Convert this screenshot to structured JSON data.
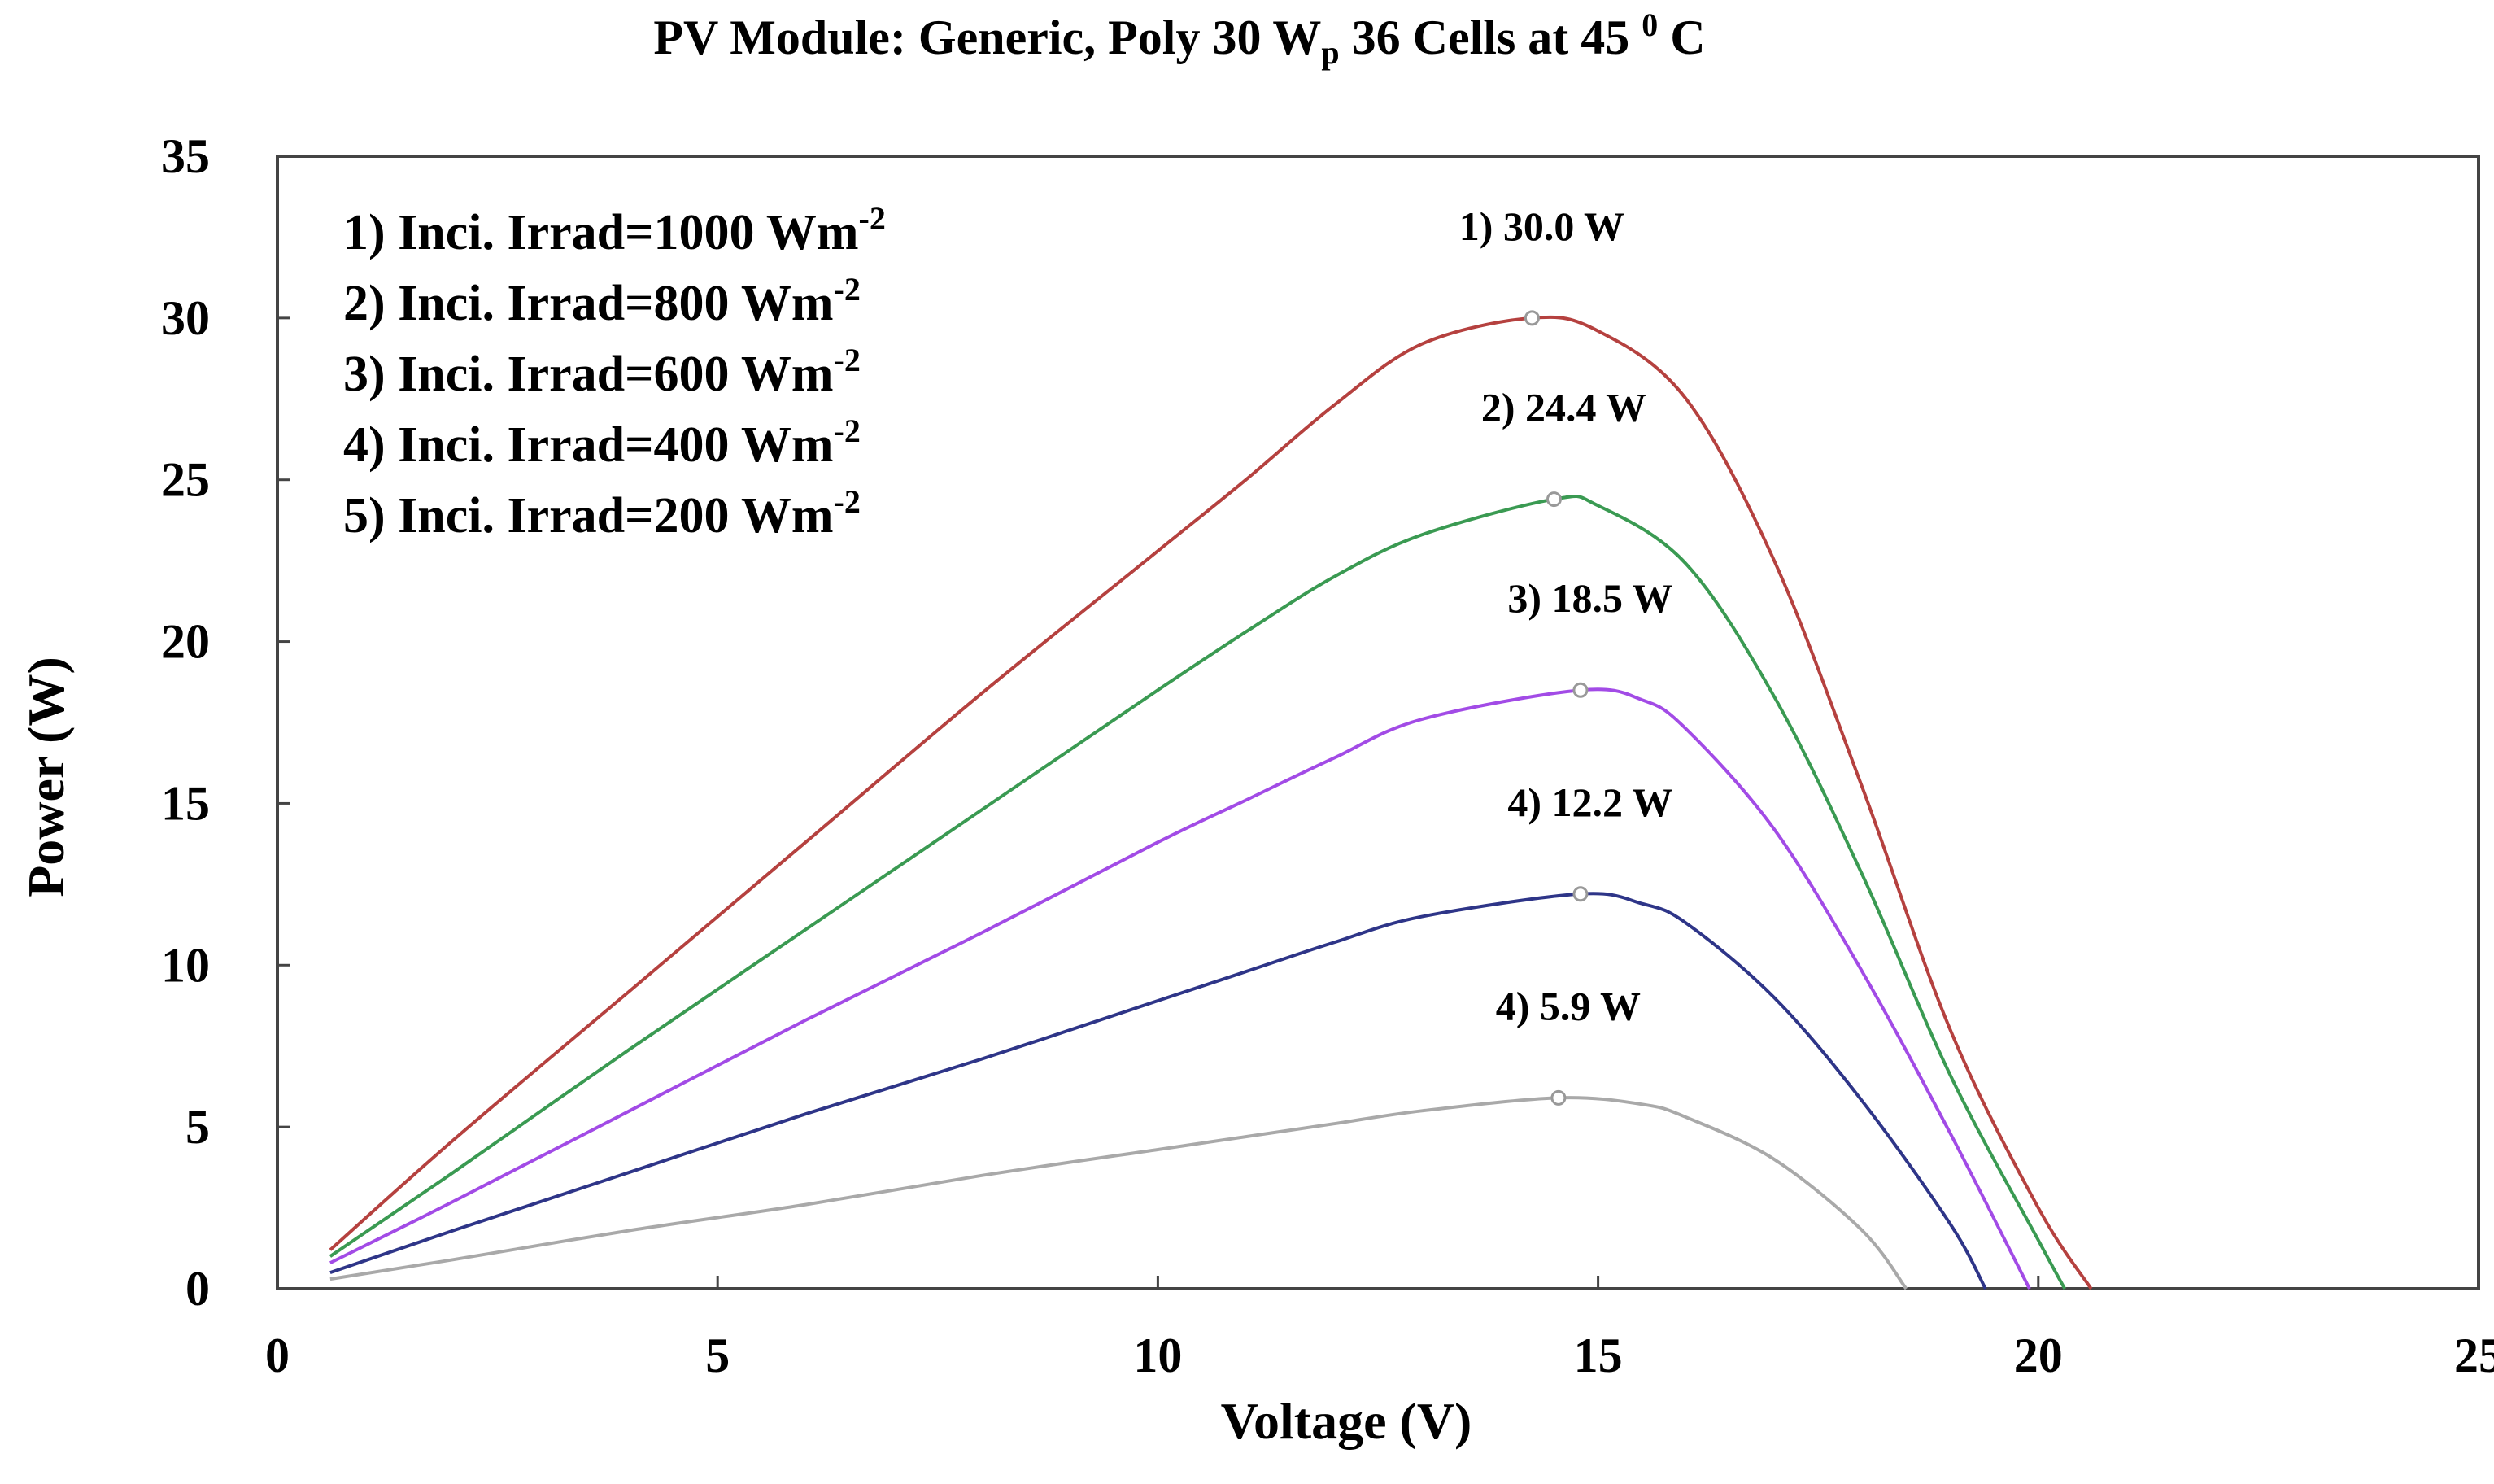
{
  "chart_data": {
    "type": "line",
    "title": {
      "main": "PV Module: Generic, Poly 30 W",
      "sub": "p",
      "rest": " 36 Cells at 45 ",
      "sup": "0",
      "tail": " C"
    },
    "xlabel": "Voltage (V)",
    "ylabel": "Power (W)",
    "xlim": [
      0,
      25
    ],
    "ylim": [
      0,
      35
    ],
    "x_ticks": [
      0,
      5,
      10,
      15,
      20,
      25
    ],
    "y_ticks": [
      0,
      5,
      10,
      15,
      20,
      25,
      30,
      35
    ],
    "legend": {
      "position": "top-left",
      "entries": [
        {
          "label": "1) Inci. Irrad=1000 Wm",
          "sup": "-2"
        },
        {
          "label": "2) Inci. Irrad=800 Wm",
          "sup": "-2"
        },
        {
          "label": "3) Inci. Irrad=600 Wm",
          "sup": "-2"
        },
        {
          "label": "4) Inci. Irrad=400 Wm",
          "sup": "-2"
        },
        {
          "label": "5) Inci. Irrad=200 Wm",
          "sup": "-2"
        }
      ]
    },
    "series": [
      {
        "name": "1000 Wm-2",
        "color": "#b5413f",
        "x": [
          0.6,
          2,
          4,
          6,
          8,
          10,
          11,
          12,
          13,
          14.25,
          15,
          16,
          17,
          18,
          19,
          20,
          20.6
        ],
        "y": [
          1.2,
          4.6,
          9.2,
          13.8,
          18.4,
          22.8,
          25.0,
          27.3,
          29.2,
          30.0,
          29.6,
          27.5,
          22.5,
          15.5,
          8.0,
          2.5,
          0.0
        ],
        "mpp_v": 14.25,
        "mpp_p": 30.0,
        "mpp_label": "1) 30.0 W"
      },
      {
        "name": "800 Wm-2",
        "color": "#3a9a52",
        "x": [
          0.6,
          2,
          4,
          6,
          8,
          10,
          11,
          12,
          13,
          14.5,
          15,
          16,
          17,
          18,
          19,
          20,
          20.3
        ],
        "y": [
          1.0,
          3.6,
          7.4,
          11.1,
          14.8,
          18.5,
          20.3,
          22.0,
          23.3,
          24.4,
          24.2,
          22.4,
          18.3,
          12.8,
          6.6,
          1.5,
          0.0
        ],
        "mpp_v": 14.5,
        "mpp_p": 24.4,
        "mpp_label": "2) 24.4 W"
      },
      {
        "name": "600 Wm-2",
        "color": "#a24be6",
        "x": [
          0.6,
          2,
          4,
          6,
          8,
          10,
          11,
          12,
          13,
          14.8,
          15.5,
          16,
          17,
          18,
          19,
          19.9
        ],
        "y": [
          0.8,
          2.7,
          5.5,
          8.3,
          11.0,
          13.8,
          15.1,
          16.4,
          17.6,
          18.5,
          18.2,
          17.3,
          14.2,
          9.8,
          4.8,
          0.0
        ],
        "mpp_v": 14.8,
        "mpp_p": 18.5,
        "mpp_label": "3) 18.5 W"
      },
      {
        "name": "400 Wm-2",
        "color": "#2e3588",
        "x": [
          0.6,
          2,
          4,
          6,
          8,
          10,
          11,
          12,
          13,
          14.8,
          15.5,
          16,
          17,
          18,
          19,
          19.4
        ],
        "y": [
          0.5,
          1.8,
          3.6,
          5.4,
          7.1,
          8.9,
          9.8,
          10.7,
          11.5,
          12.2,
          11.9,
          11.3,
          9.0,
          5.8,
          2.0,
          0.0
        ],
        "mpp_v": 14.8,
        "mpp_p": 12.2,
        "mpp_label": "4) 12.2 W"
      },
      {
        "name": "200 Wm-2",
        "color": "#a9a9a9",
        "x": [
          0.6,
          2,
          4,
          6,
          8,
          10,
          11,
          12,
          13,
          14.55,
          15.5,
          16,
          17,
          18,
          18.5
        ],
        "y": [
          0.3,
          0.9,
          1.8,
          2.6,
          3.5,
          4.3,
          4.7,
          5.1,
          5.5,
          5.9,
          5.7,
          5.3,
          4.0,
          1.8,
          0.0
        ],
        "mpp_v": 14.55,
        "mpp_p": 5.9,
        "mpp_label": "4) 5.9 W"
      }
    ]
  }
}
